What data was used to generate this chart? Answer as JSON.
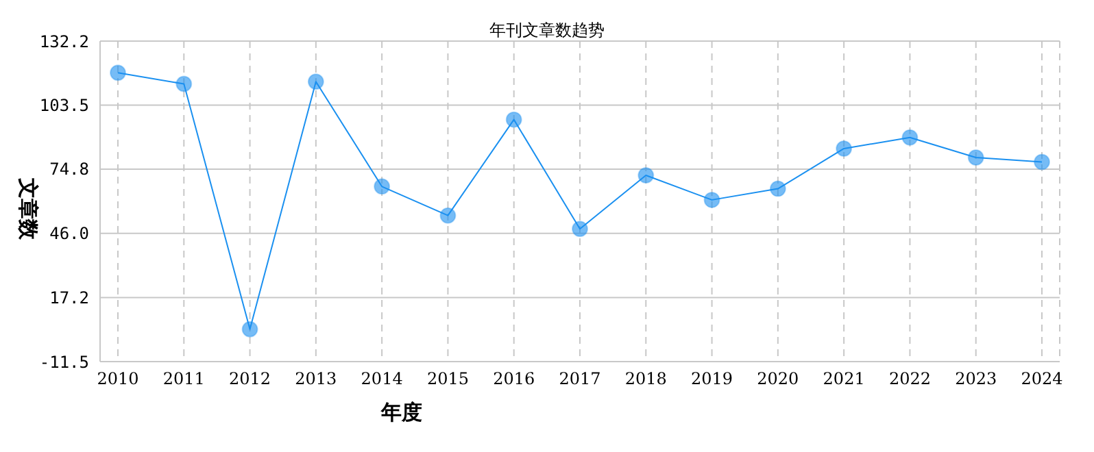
{
  "chart_data": {
    "type": "line",
    "title": "年刊文章数趋势",
    "xlabel": "年度",
    "ylabel": "文章数",
    "categories": [
      "2010",
      "2011",
      "2012",
      "2013",
      "2014",
      "2015",
      "2016",
      "2017",
      "2018",
      "2019",
      "2020",
      "2021",
      "2022",
      "2023",
      "2024"
    ],
    "series": [
      {
        "color": "#1a90f0",
        "values": [
          118,
          113,
          3,
          114,
          67,
          54,
          97,
          48,
          72,
          61,
          66,
          84,
          89,
          80,
          78
        ]
      }
    ],
    "ylim": [
      -11.5,
      132.2
    ],
    "yticks": [
      {
        "value": -11.5,
        "label": "-11.5"
      },
      {
        "value": 17.2,
        "label": "17.2"
      },
      {
        "value": 46,
        "label": "46.0"
      },
      {
        "value": 74.8,
        "label": "74.8"
      },
      {
        "value": 103.5,
        "label": "103.5"
      },
      {
        "value": 132.2,
        "label": "132.2"
      }
    ],
    "grid": true,
    "legend": false,
    "marker": "circle",
    "line_style": "solid"
  }
}
